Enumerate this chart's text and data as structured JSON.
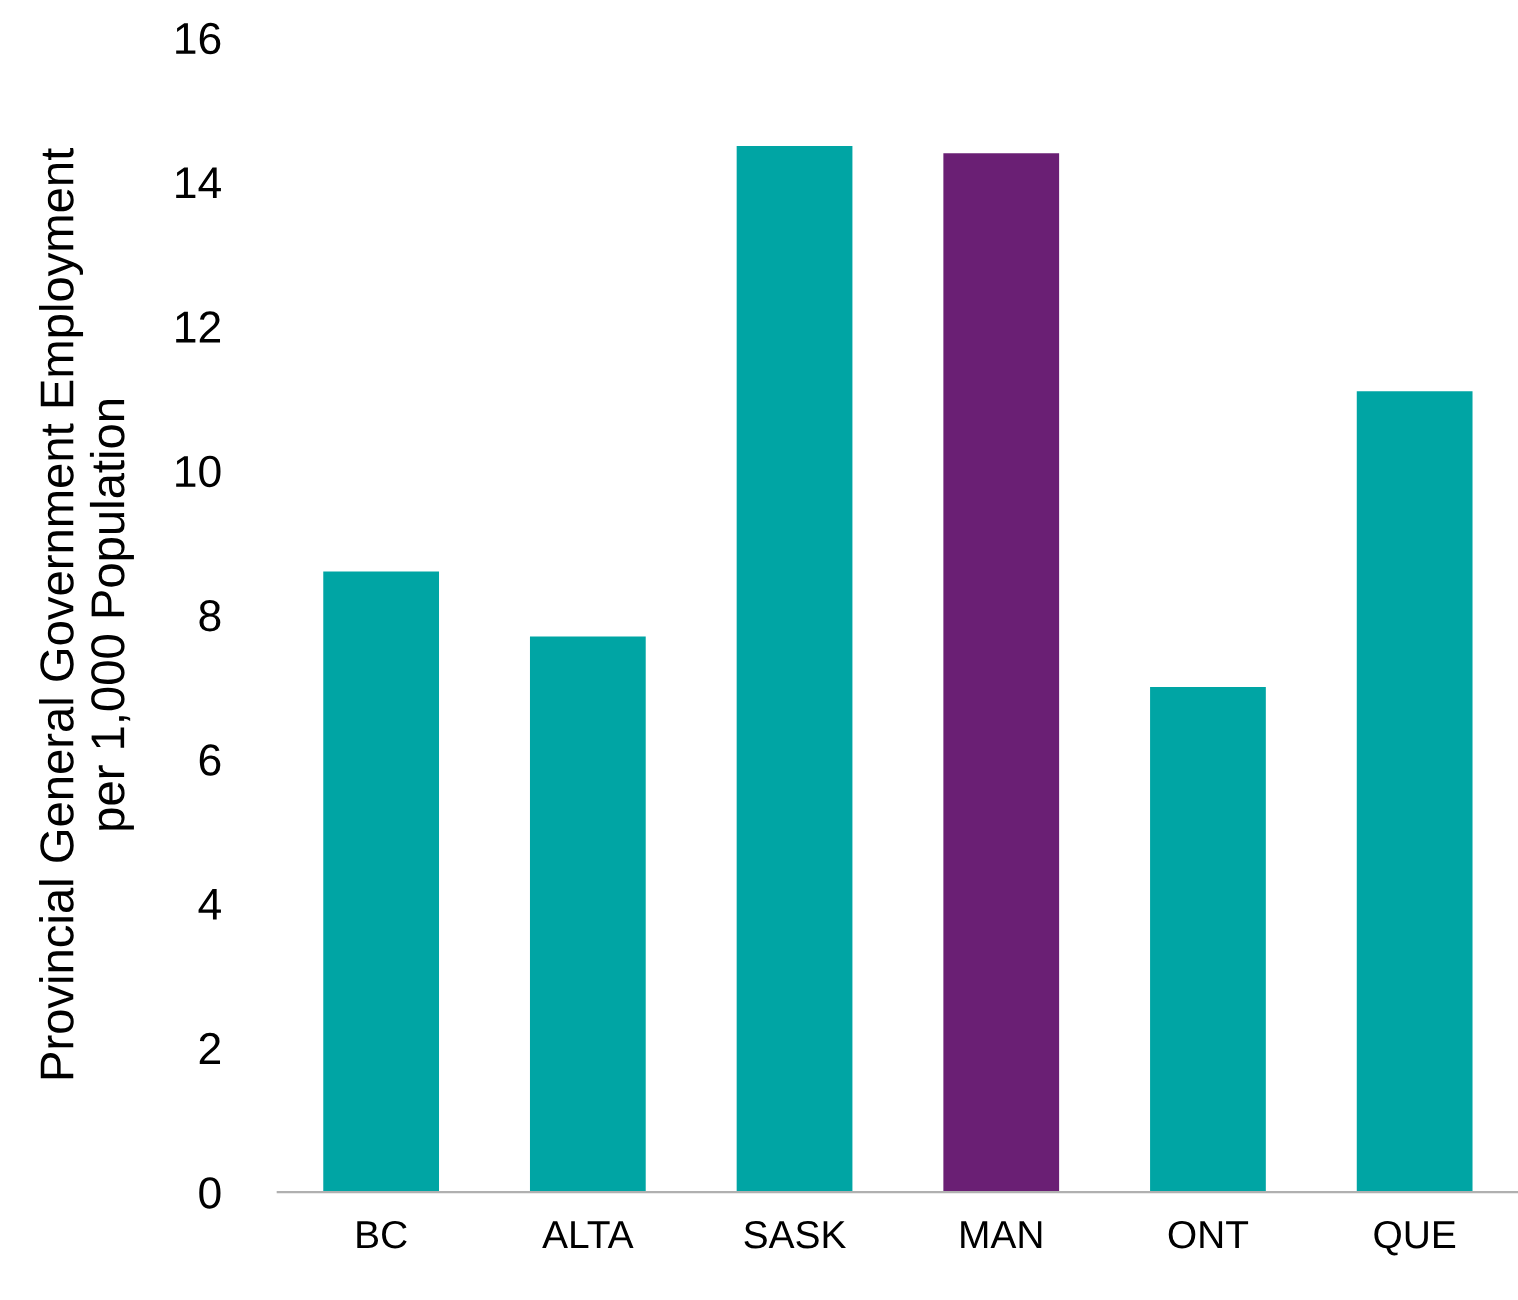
{
  "chart_data": {
    "type": "bar",
    "ylabel": "Provincial General Government Employment\nper 1,000 Population",
    "categories": [
      "BC",
      "ALTA",
      "SASK",
      "MAN",
      "ONT",
      "QUE"
    ],
    "values": [
      8.6,
      7.7,
      14.5,
      14.4,
      7.0,
      11.1
    ],
    "colors": [
      "#00a5a4",
      "#00a5a4",
      "#00a5a4",
      "#6a1f74",
      "#00a5a4",
      "#00a5a4"
    ],
    "ylim": [
      0,
      16
    ],
    "yticks": [
      0,
      2,
      4,
      6,
      8,
      10,
      12,
      14,
      16
    ],
    "grid": false,
    "legend": false
  }
}
